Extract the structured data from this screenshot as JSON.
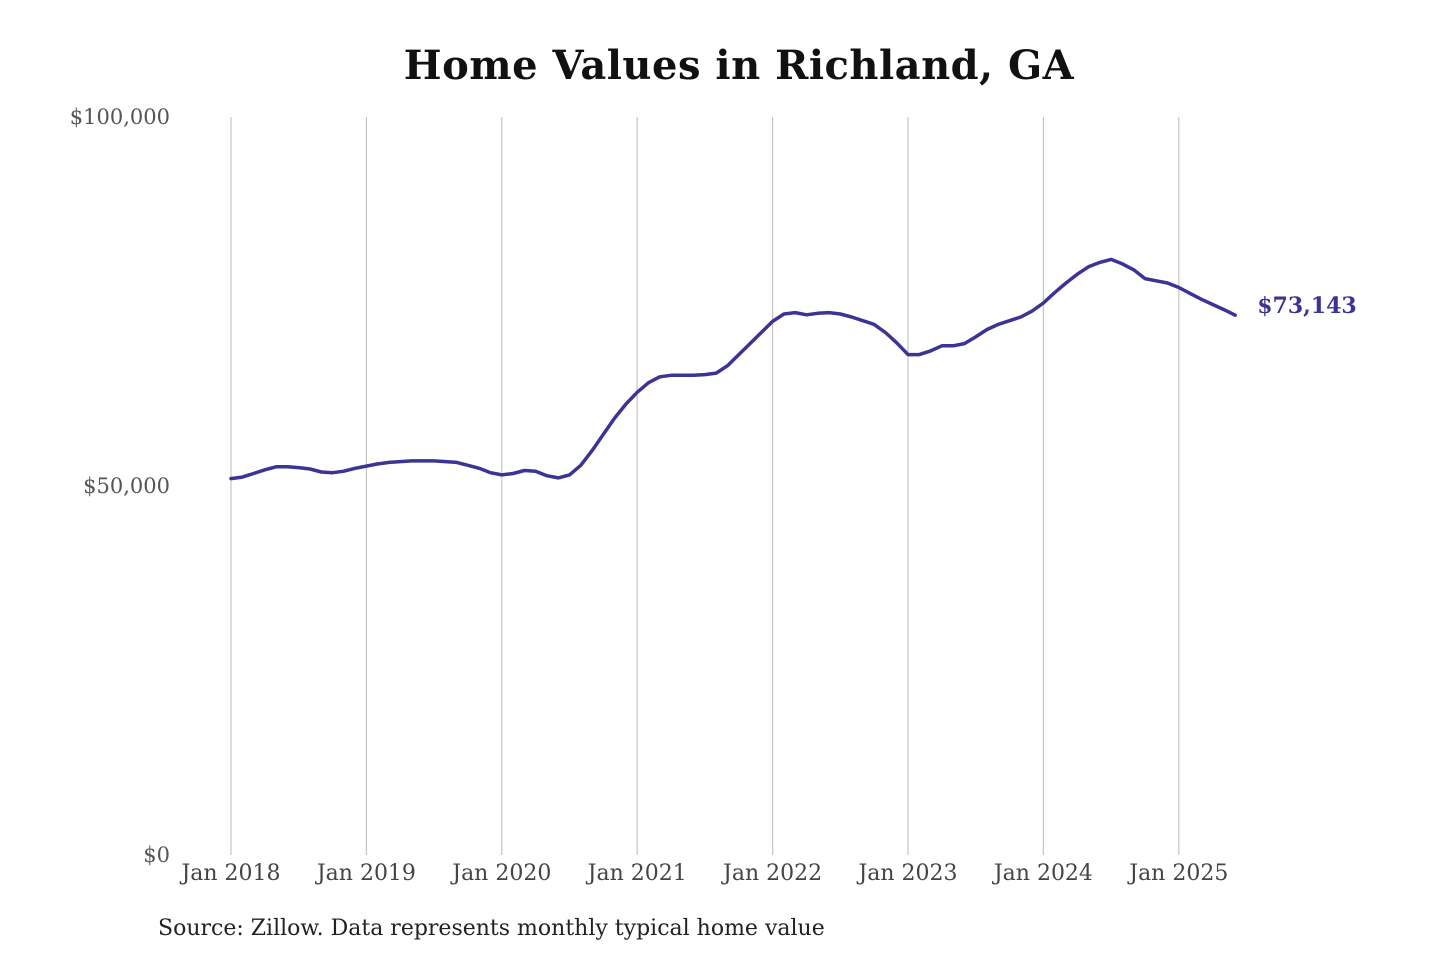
{
  "chart_data": {
    "type": "line",
    "title": "Home Values in Richland, GA",
    "source": "Source: Zillow. Data represents monthly typical home value",
    "xlabel": "",
    "ylabel": "",
    "ylim": [
      0,
      100000
    ],
    "y_ticks": [
      {
        "value": 0,
        "label": "$0"
      },
      {
        "value": 50000,
        "label": "$50,000"
      },
      {
        "value": 100000,
        "label": "$100,000"
      }
    ],
    "x_ticks": [
      {
        "value": "2018-01",
        "label": "Jan 2018"
      },
      {
        "value": "2019-01",
        "label": "Jan 2019"
      },
      {
        "value": "2020-01",
        "label": "Jan 2020"
      },
      {
        "value": "2021-01",
        "label": "Jan 2021"
      },
      {
        "value": "2022-01",
        "label": "Jan 2022"
      },
      {
        "value": "2023-01",
        "label": "Jan 2023"
      },
      {
        "value": "2024-01",
        "label": "Jan 2024"
      },
      {
        "value": "2025-01",
        "label": "Jan 2025"
      }
    ],
    "grid": {
      "vertical": true,
      "horizontal": false
    },
    "line_color": "#3b3494",
    "end_label": "$73,143",
    "series": [
      {
        "x": [
          "2018-01",
          "2018-02",
          "2018-03",
          "2018-04",
          "2018-05",
          "2018-06",
          "2018-07",
          "2018-08",
          "2018-09",
          "2018-10",
          "2018-11",
          "2018-12",
          "2019-01",
          "2019-02",
          "2019-03",
          "2019-04",
          "2019-05",
          "2019-06",
          "2019-07",
          "2019-08",
          "2019-09",
          "2019-10",
          "2019-11",
          "2019-12",
          "2020-01",
          "2020-02",
          "2020-03",
          "2020-04",
          "2020-05",
          "2020-06",
          "2020-07",
          "2020-08",
          "2020-09",
          "2020-10",
          "2020-11",
          "2020-12",
          "2021-01",
          "2021-02",
          "2021-03",
          "2021-04",
          "2021-05",
          "2021-06",
          "2021-07",
          "2021-08",
          "2021-09",
          "2021-10",
          "2021-11",
          "2021-12",
          "2022-01",
          "2022-02",
          "2022-03",
          "2022-04",
          "2022-05",
          "2022-06",
          "2022-07",
          "2022-08",
          "2022-09",
          "2022-10",
          "2022-11",
          "2022-12",
          "2023-01",
          "2023-02",
          "2023-03",
          "2023-04",
          "2023-05",
          "2023-06",
          "2023-07",
          "2023-08",
          "2023-09",
          "2023-10",
          "2023-11",
          "2023-12",
          "2024-01",
          "2024-02",
          "2024-03",
          "2024-04",
          "2024-05",
          "2024-06",
          "2024-07",
          "2024-08",
          "2024-09",
          "2024-10",
          "2024-11",
          "2024-12",
          "2025-01",
          "2025-02",
          "2025-03",
          "2025-04",
          "2025-05",
          "2025-06"
        ],
        "values": [
          51000,
          51200,
          51700,
          52200,
          52600,
          52600,
          52500,
          52300,
          51900,
          51800,
          52000,
          52400,
          52700,
          53000,
          53200,
          53300,
          53400,
          53400,
          53400,
          53300,
          53200,
          52800,
          52400,
          51800,
          51500,
          51700,
          52100,
          52000,
          51400,
          51100,
          51500,
          52800,
          54800,
          57000,
          59200,
          61100,
          62700,
          64000,
          64800,
          65000,
          65000,
          65000,
          65100,
          65300,
          66300,
          67800,
          69300,
          70800,
          72300,
          73300,
          73500,
          73200,
          73400,
          73500,
          73300,
          72900,
          72400,
          71900,
          70800,
          69400,
          67800,
          67800,
          68300,
          69000,
          69000,
          69300,
          70200,
          71200,
          71900,
          72400,
          72900,
          73700,
          74800,
          76200,
          77500,
          78700,
          79700,
          80300,
          80700,
          80100,
          79300,
          78100,
          77800,
          77500,
          76900,
          76100,
          75300,
          74600,
          73900,
          73143
        ]
      }
    ]
  }
}
